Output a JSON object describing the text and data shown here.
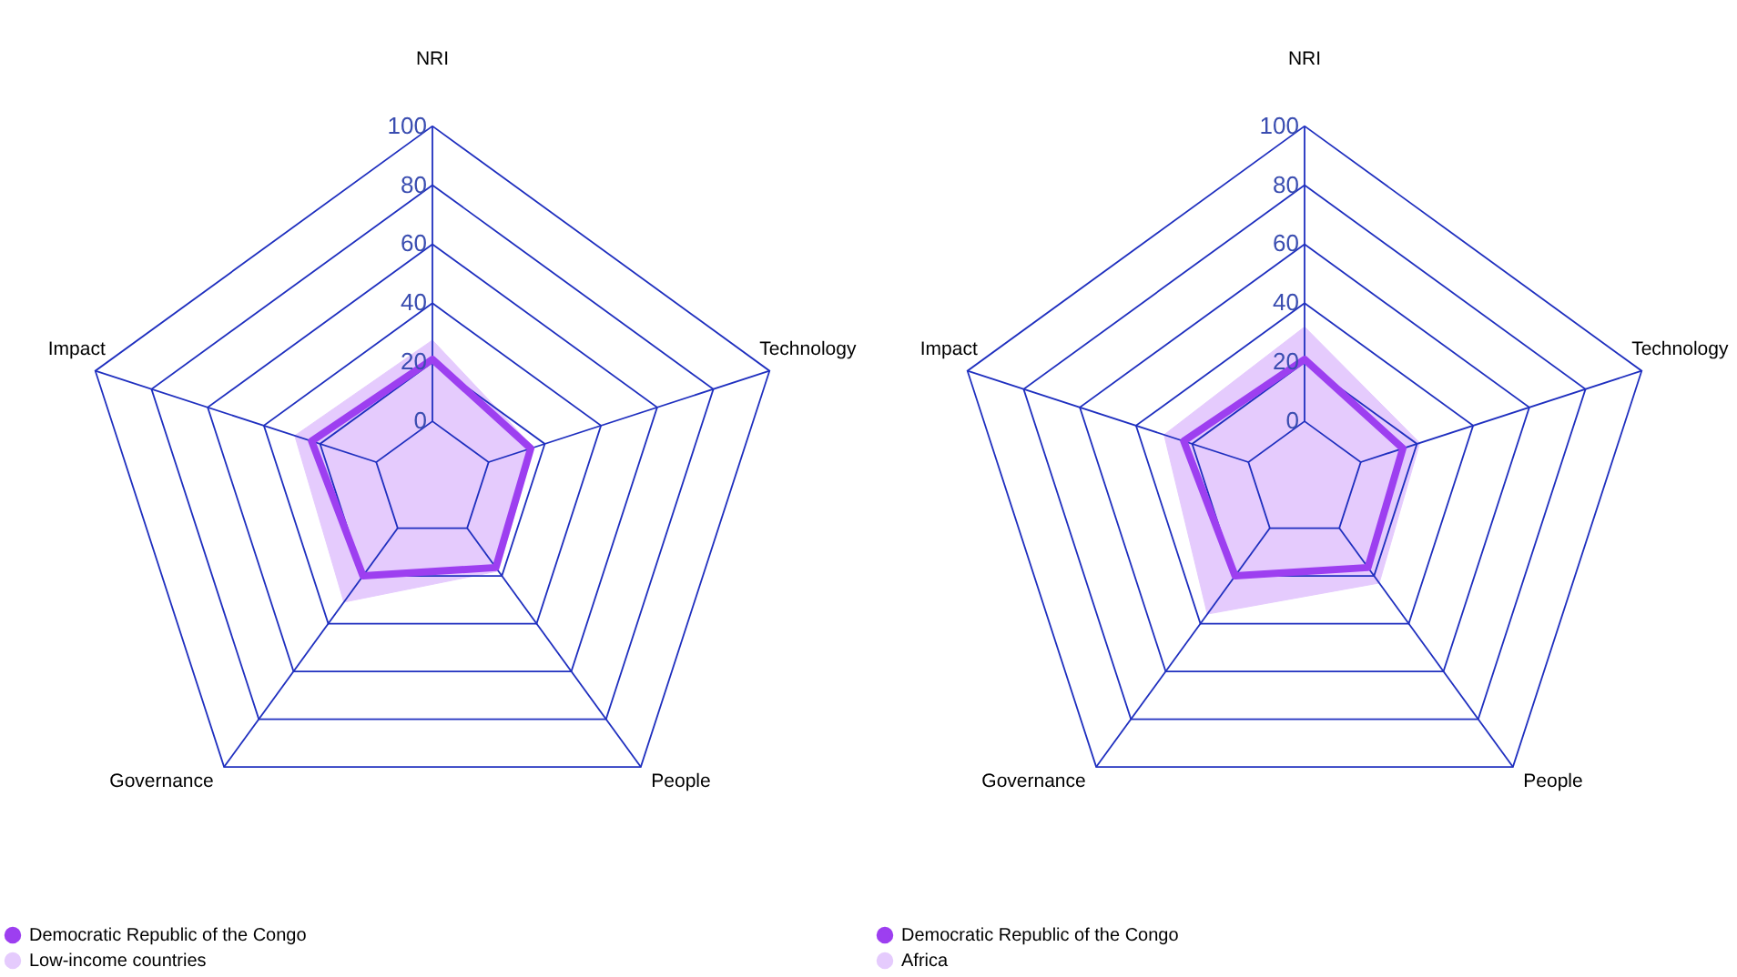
{
  "chart_data": [
    {
      "type": "radar",
      "categories": [
        "NRI",
        "Technology",
        "People",
        "Governance",
        "Impact"
      ],
      "ylim": [
        -20,
        100
      ],
      "yticks": [
        0,
        20,
        40,
        60,
        80,
        100
      ],
      "grid": true,
      "legend": "bottom left",
      "series": [
        {
          "name": "Democratic Republic of the Congo",
          "color": "#9d3ff0",
          "values": [
            21,
            15,
            16.5,
            20,
            23
          ]
        },
        {
          "name": "Low-income countries",
          "type": "area",
          "color": "#e5cbfd",
          "values": [
            27.5,
            16,
            18,
            31,
            29
          ]
        }
      ]
    },
    {
      "type": "radar",
      "categories": [
        "NRI",
        "Technology",
        "People",
        "Governance",
        "Impact"
      ],
      "ylim": [
        -20,
        100
      ],
      "yticks": [
        0,
        20,
        40,
        60,
        80,
        100
      ],
      "grid": true,
      "legend": "bottom left",
      "series": [
        {
          "name": "Democratic Republic of the Congo",
          "color": "#9d3ff0",
          "values": [
            21,
            15,
            16.5,
            20,
            23
          ]
        },
        {
          "name": "Africa",
          "type": "area",
          "color": "#e5cbfd",
          "values": [
            32,
            21,
            23,
            36,
            30
          ]
        }
      ]
    }
  ]
}
